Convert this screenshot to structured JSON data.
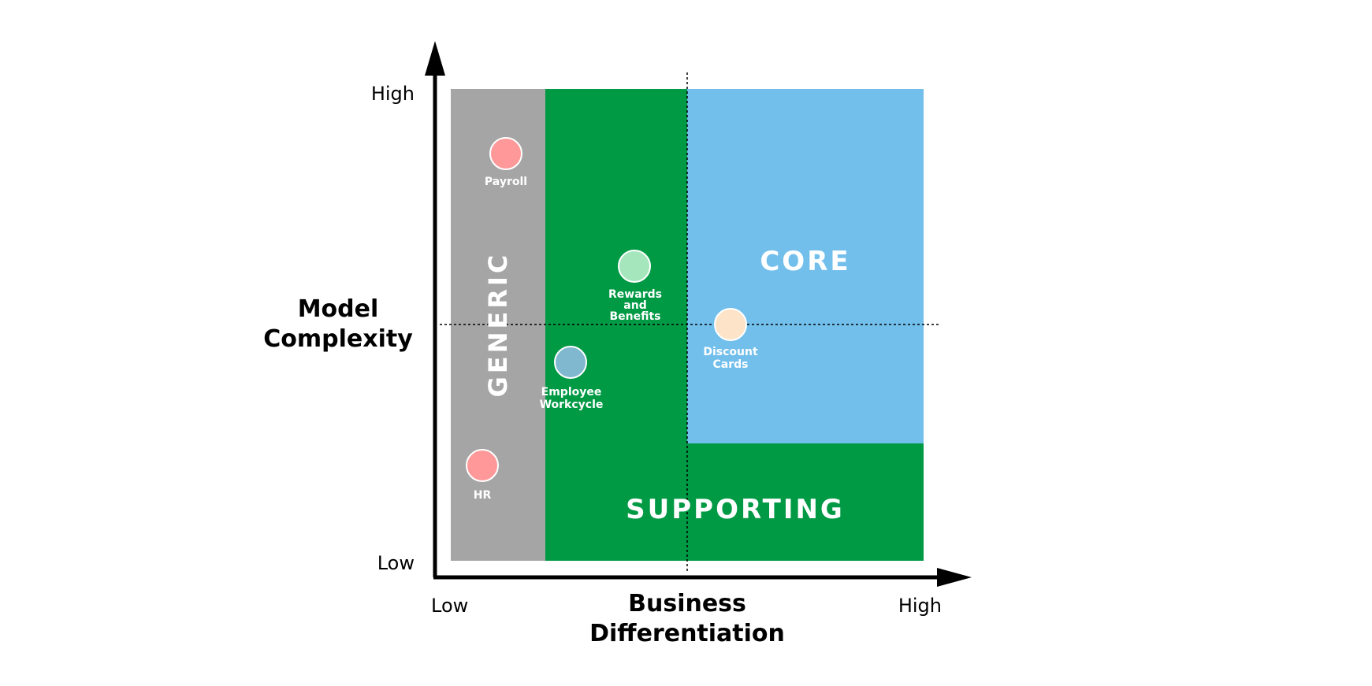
{
  "zones": {
    "generic": {
      "label": "GENERIC",
      "color": "#a5a5a5"
    },
    "supporting": {
      "label": "SUPPORTING",
      "color": "#009944"
    },
    "core": {
      "label": "CORE",
      "color": "#72bfec"
    }
  },
  "y_axis": {
    "title_line1": "Model",
    "title_line2": "Complexity",
    "high": "High",
    "low": "Low"
  },
  "x_axis": {
    "title_line1": "Business",
    "title_line2": "Differentiation",
    "low": "Low",
    "high": "High"
  },
  "points": [
    {
      "id": "payroll",
      "lines": [
        "Payroll"
      ],
      "color": "#ff9999"
    },
    {
      "id": "hr",
      "lines": [
        "HR"
      ],
      "color": "#ff9999"
    },
    {
      "id": "rewards",
      "lines": [
        "Rewards",
        "and",
        "Benefits"
      ],
      "color": "#a6e6bd"
    },
    {
      "id": "employee",
      "lines": [
        "Employee",
        "Workcycle"
      ],
      "color": "#7fb8cf"
    },
    {
      "id": "discount",
      "lines": [
        "Discount",
        "Cards"
      ],
      "color": "#fde3c8"
    }
  ]
}
